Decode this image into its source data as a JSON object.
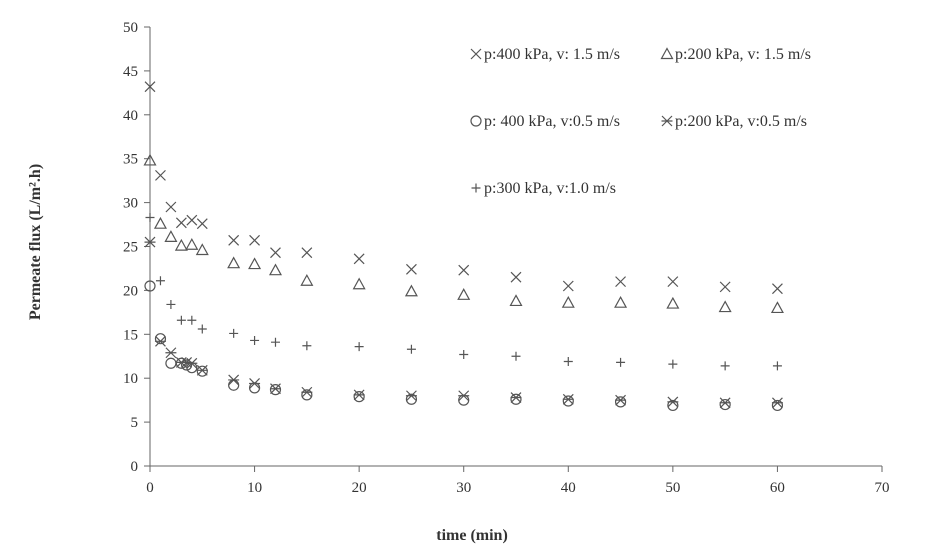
{
  "chart_data": {
    "type": "scatter",
    "title": "",
    "xlabel": "time (min)",
    "ylabel": "Permeate flux (L/m².h)",
    "xlim": [
      0,
      70
    ],
    "ylim": [
      0,
      50
    ],
    "xticks": [
      0,
      10,
      20,
      30,
      40,
      50,
      60,
      70
    ],
    "yticks": [
      0,
      5,
      10,
      15,
      20,
      25,
      30,
      35,
      40,
      45,
      50
    ],
    "grid": false,
    "legend_position": "top-right",
    "series": [
      {
        "name": "p:400 kPa, v: 1.5 m/s",
        "marker": "x",
        "x": [
          0,
          1,
          2,
          3,
          4,
          5,
          8,
          10,
          12,
          15,
          20,
          25,
          30,
          35,
          40,
          45,
          50,
          55,
          60
        ],
        "y": [
          43.2,
          33.1,
          29.5,
          27.7,
          28.0,
          27.6,
          25.7,
          25.7,
          24.3,
          24.3,
          23.6,
          22.4,
          22.3,
          21.5,
          20.5,
          21.0,
          21.0,
          20.4,
          20.2
        ]
      },
      {
        "name": "p:200 kPa, v: 1.5 m/s",
        "marker": "triangle",
        "x": [
          0,
          1,
          2,
          3,
          4,
          5,
          8,
          10,
          12,
          15,
          20,
          25,
          30,
          35,
          40,
          45,
          50,
          55,
          60
        ],
        "y": [
          34.8,
          27.6,
          26.1,
          25.1,
          25.2,
          24.6,
          23.1,
          23.0,
          22.3,
          21.1,
          20.7,
          19.9,
          19.5,
          18.8,
          18.6,
          18.6,
          18.5,
          18.1,
          18.0
        ]
      },
      {
        "name": "p: 400 kPa, v:0.5 m/s",
        "marker": "circle",
        "x": [
          0,
          1,
          2,
          3,
          3.5,
          4,
          5,
          8,
          10,
          12,
          15,
          20,
          25,
          30,
          35,
          40,
          45,
          50,
          55,
          60
        ],
        "y": [
          20.5,
          14.5,
          11.7,
          11.7,
          11.5,
          11.2,
          10.8,
          9.2,
          8.9,
          8.7,
          8.1,
          7.9,
          7.6,
          7.5,
          7.6,
          7.4,
          7.3,
          6.9,
          7.0,
          6.9
        ]
      },
      {
        "name": "p:200 kPa, v:0.5 m/s",
        "marker": "asterisk",
        "x": [
          0,
          1,
          2,
          3,
          3.5,
          4,
          5,
          8,
          10,
          12,
          15,
          20,
          25,
          30,
          35,
          40,
          45,
          50,
          55,
          60
        ],
        "y": [
          25.5,
          14.2,
          12.9,
          11.8,
          11.8,
          11.7,
          10.9,
          9.8,
          9.4,
          8.8,
          8.4,
          8.1,
          8.0,
          8.0,
          7.8,
          7.6,
          7.5,
          7.3,
          7.2,
          7.2
        ]
      },
      {
        "name": "p:300 kPa, v:1.0 m/s",
        "marker": "plus",
        "x": [
          0,
          1,
          2,
          3,
          4,
          5,
          8,
          10,
          12,
          15,
          20,
          25,
          30,
          35,
          40,
          45,
          50,
          55,
          60
        ],
        "y": [
          28.3,
          21.1,
          18.4,
          16.6,
          16.6,
          15.6,
          15.1,
          14.3,
          14.1,
          13.7,
          13.6,
          13.3,
          12.7,
          12.5,
          11.9,
          11.8,
          11.6,
          11.4,
          11.4
        ]
      }
    ]
  }
}
